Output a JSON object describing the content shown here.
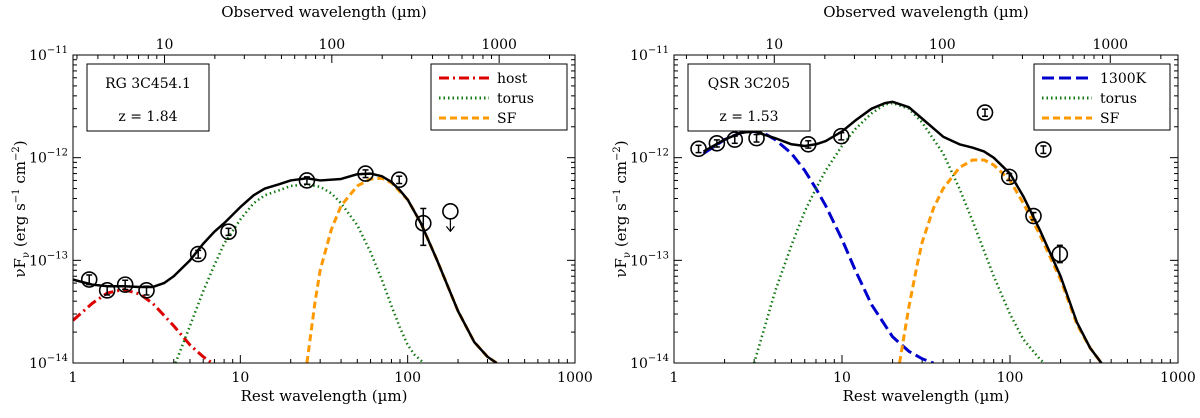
{
  "chart_data": [
    {
      "type": "line",
      "log_x": true,
      "log_y": true,
      "xlim": [
        1,
        1000
      ],
      "ylim": [
        1e-14,
        1e-11
      ],
      "xlabel": "Rest wavelength (µm)",
      "top_xlabel": "Observed wavelength (µm)",
      "ylabel_main": "νF",
      "ylabel_sub": "ν",
      "ylabel_units": " (erg s",
      "ylabel_exp1": "−1",
      "ylabel_cm": " cm",
      "ylabel_exp2": "−2",
      "ylabel_close": ")",
      "x_ticks": [
        {
          "value": 1,
          "label": "1"
        },
        {
          "value": 10,
          "label": "10"
        },
        {
          "value": 100,
          "label": "100"
        },
        {
          "value": 1000,
          "label": "1000"
        }
      ],
      "top_x_ticks": [
        {
          "value": 10,
          "label": "10"
        },
        {
          "value": 100,
          "label": "100"
        },
        {
          "value": 1000,
          "label": "1000"
        }
      ],
      "y_ticks": [
        {
          "value": 1e-14,
          "mant": "10",
          "exp": "−14"
        },
        {
          "value": 1e-13,
          "mant": "10",
          "exp": "−13"
        },
        {
          "value": 1e-12,
          "mant": "10",
          "exp": "−12"
        },
        {
          "value": 1e-11,
          "mant": "10",
          "exp": "−11"
        }
      ],
      "redshift": 1.84,
      "info": {
        "name": "RG 3C454.1",
        "z_label": "z = 1.84"
      },
      "legend": [
        {
          "label": "host",
          "color": "#dd0000",
          "dash": "10,4,2,4"
        },
        {
          "label": "torus",
          "color": "#117711",
          "dash": "1.5,3"
        },
        {
          "label": "SF",
          "color": "#ff9900",
          "dash": "7,4"
        }
      ],
      "series": [
        {
          "name": "host",
          "color": "#dd0000",
          "dash": "10,4,2,4",
          "width": 3,
          "x": [
            1,
            1.3,
            1.6,
            2,
            2.5,
            3,
            4,
            5,
            6,
            6.8
          ],
          "y": [
            2.6e-14,
            3.8e-14,
            4.8e-14,
            5.2e-14,
            4.7e-14,
            3.8e-14,
            2.3e-14,
            1.5e-14,
            1.15e-14,
            1e-14
          ]
        },
        {
          "name": "torus",
          "color": "#117711",
          "dash": "1.5,3",
          "width": 2.5,
          "x": [
            4.1,
            5,
            6,
            7,
            8,
            10,
            12,
            14,
            17,
            20,
            25,
            30,
            35,
            40,
            50,
            60,
            70,
            80,
            90,
            100,
            110,
            125
          ],
          "y": [
            1e-14,
            2.3e-14,
            5e-14,
            9e-14,
            1.45e-13,
            2.5e-13,
            3.6e-13,
            4.3e-13,
            4.8e-13,
            5.3e-13,
            5.5e-13,
            5.2e-13,
            4.5e-13,
            3.6e-13,
            2.2e-13,
            1.2e-13,
            6.5e-14,
            3.6e-14,
            2.2e-14,
            1.5e-14,
            1.2e-14,
            1e-14
          ]
        },
        {
          "name": "SF",
          "color": "#ff9900",
          "dash": "7,4",
          "width": 3,
          "x": [
            25,
            28,
            30,
            35,
            40,
            50,
            60,
            70,
            80,
            100,
            120,
            150,
            200,
            250,
            300,
            340
          ],
          "y": [
            1e-14,
            4e-14,
            8e-14,
            2e-13,
            3.4e-13,
            5.3e-13,
            6.2e-13,
            6.3e-13,
            5.7e-13,
            3.9e-13,
            2.3e-13,
            1e-13,
            3.2e-14,
            1.6e-14,
            1.15e-14,
            1e-14
          ]
        },
        {
          "name": "total",
          "color": "#000000",
          "dash": "",
          "width": 2.5,
          "x": [
            1,
            1.3,
            1.6,
            2,
            2.5,
            3,
            3.5,
            4,
            5,
            6,
            7,
            8,
            10,
            12,
            14,
            17,
            20,
            25,
            30,
            40,
            50,
            60,
            70,
            80,
            90,
            100,
            120,
            150,
            200,
            250,
            300,
            340
          ],
          "y": [
            6.5e-14,
            5.8e-14,
            5.6e-14,
            5.6e-14,
            5.5e-14,
            5.5e-14,
            6e-14,
            7e-14,
            1e-13,
            1.45e-13,
            1.9e-13,
            2.3e-13,
            3.3e-13,
            4.3e-13,
            5e-13,
            5.5e-13,
            6e-13,
            6.3e-13,
            6e-13,
            6.2e-13,
            6.9e-13,
            7e-13,
            6.6e-13,
            5.8e-13,
            4.8e-13,
            3.9e-13,
            2.3e-13,
            1e-13,
            3.2e-14,
            1.6e-14,
            1.15e-14,
            1e-14
          ]
        }
      ],
      "points": [
        {
          "x": 1.25,
          "y": 6.5e-14,
          "err": [
            5.8e-14,
            7.2e-14
          ]
        },
        {
          "x": 1.6,
          "y": 5.1e-14,
          "err": [
            4.6e-14,
            5.6e-14
          ]
        },
        {
          "x": 2.05,
          "y": 5.8e-14,
          "err": [
            5.2e-14,
            6.4e-14
          ]
        },
        {
          "x": 2.75,
          "y": 5.1e-14,
          "err": [
            4.6e-14,
            5.6e-14
          ]
        },
        {
          "x": 5.6,
          "y": 1.15e-13,
          "err": [
            1.05e-13,
            1.25e-13
          ]
        },
        {
          "x": 8.5,
          "y": 1.9e-13,
          "err": [
            1.75e-13,
            2.05e-13
          ]
        },
        {
          "x": 25,
          "y": 6e-13,
          "err": [
            5.5e-13,
            6.5e-13
          ]
        },
        {
          "x": 56,
          "y": 7e-13,
          "err": [
            6.4e-13,
            7.6e-13
          ]
        },
        {
          "x": 89,
          "y": 6.1e-13,
          "err": [
            5.6e-13,
            6.6e-13
          ]
        },
        {
          "x": 124,
          "y": 2.3e-13,
          "err": [
            1.4e-13,
            3.2e-13
          ]
        }
      ],
      "upper_limits": [
        {
          "x": 180,
          "y": 3e-13
        }
      ]
    },
    {
      "type": "line",
      "log_x": true,
      "log_y": true,
      "xlim": [
        1,
        1000
      ],
      "ylim": [
        1e-14,
        1e-11
      ],
      "xlabel": "Rest wavelength (µm)",
      "top_xlabel": "Observed wavelength (µm)",
      "ylabel_main": "νF",
      "ylabel_sub": "ν",
      "ylabel_units": " (erg s",
      "ylabel_exp1": "−1",
      "ylabel_cm": " cm",
      "ylabel_exp2": "−2",
      "ylabel_close": ")",
      "x_ticks": [
        {
          "value": 1,
          "label": "1"
        },
        {
          "value": 10,
          "label": "10"
        },
        {
          "value": 100,
          "label": "100"
        },
        {
          "value": 1000,
          "label": "1000"
        }
      ],
      "top_x_ticks": [
        {
          "value": 10,
          "label": "10"
        },
        {
          "value": 100,
          "label": "100"
        },
        {
          "value": 1000,
          "label": "1000"
        }
      ],
      "y_ticks": [
        {
          "value": 1e-14,
          "mant": "10",
          "exp": "−14"
        },
        {
          "value": 1e-13,
          "mant": "10",
          "exp": "−13"
        },
        {
          "value": 1e-12,
          "mant": "10",
          "exp": "−12"
        },
        {
          "value": 1e-11,
          "mant": "10",
          "exp": "−11"
        }
      ],
      "redshift": 1.53,
      "info": {
        "name": "QSR 3C205",
        "z_label": "z = 1.53"
      },
      "legend": [
        {
          "label": "1300K",
          "color": "#0000cc",
          "dash": "12,5"
        },
        {
          "label": "torus",
          "color": "#117711",
          "dash": "1.5,3"
        },
        {
          "label": "SF",
          "color": "#ff9900",
          "dash": "7,4"
        }
      ],
      "series": [
        {
          "name": "1300K",
          "color": "#0000cc",
          "dash": "12,5",
          "width": 3,
          "x": [
            1.5,
            2,
            2.5,
            3,
            3.5,
            4,
            5,
            6,
            7,
            8,
            10,
            12,
            15,
            20,
            25,
            30,
            35
          ],
          "y": [
            1.1e-12,
            1.5e-12,
            1.75e-12,
            1.8e-12,
            1.7e-12,
            1.5e-12,
            1.1e-12,
            7.5e-13,
            5e-13,
            3.4e-13,
            1.6e-13,
            8e-14,
            3.7e-14,
            1.8e-14,
            1.3e-14,
            1.1e-14,
            1e-14
          ]
        },
        {
          "name": "torus",
          "color": "#117711",
          "dash": "1.5,3",
          "width": 2.5,
          "x": [
            3,
            4,
            5,
            6,
            7,
            8,
            10,
            12,
            15,
            18,
            20,
            25,
            30,
            40,
            50,
            60,
            80,
            100,
            120,
            150,
            160
          ],
          "y": [
            1e-14,
            5e-14,
            1.4e-13,
            3e-13,
            5e-13,
            7.5e-13,
            1.3e-12,
            1.9e-12,
            2.7e-12,
            3.3e-12,
            3.4e-12,
            3e-12,
            2.2e-12,
            1.1e-12,
            5e-13,
            2.4e-13,
            7e-14,
            3e-14,
            1.7e-14,
            1.1e-14,
            1e-14
          ]
        },
        {
          "name": "SF",
          "color": "#ff9900",
          "dash": "7,4",
          "width": 3,
          "x": [
            22,
            25,
            28,
            30,
            35,
            40,
            50,
            60,
            70,
            80,
            100,
            120,
            150,
            200,
            250,
            300,
            350
          ],
          "y": [
            1e-14,
            3.5e-14,
            9e-14,
            1.5e-13,
            3.2e-13,
            5e-13,
            8e-13,
            9.5e-13,
            9.5e-13,
            8.5e-13,
            6e-13,
            3.6e-13,
            1.8e-13,
            6.5e-14,
            2.4e-14,
            1.4e-14,
            1e-14
          ]
        },
        {
          "name": "total",
          "color": "#000000",
          "dash": "",
          "width": 2.5,
          "x": [
            1.5,
            2,
            2.5,
            3,
            4,
            5,
            6,
            7,
            8,
            10,
            12,
            15,
            18,
            20,
            25,
            30,
            40,
            50,
            60,
            70,
            80,
            100,
            120,
            150,
            200,
            250,
            300,
            350
          ],
          "y": [
            1.15e-12,
            1.5e-12,
            1.75e-12,
            1.8e-12,
            1.55e-12,
            1.35e-12,
            1.3e-12,
            1.35e-12,
            1.45e-12,
            1.8e-12,
            2.3e-12,
            3e-12,
            3.4e-12,
            3.5e-12,
            3.1e-12,
            2.4e-12,
            1.6e-12,
            1.35e-12,
            1.25e-12,
            1.15e-12,
            1e-12,
            7e-13,
            4.2e-13,
            2e-13,
            7e-14,
            2.5e-14,
            1.4e-14,
            1e-14
          ]
        }
      ],
      "points": [
        {
          "x": 1.4,
          "y": 1.22e-12,
          "err": [
            1.12e-12,
            1.32e-12
          ]
        },
        {
          "x": 1.8,
          "y": 1.38e-12,
          "err": [
            1.27e-12,
            1.49e-12
          ]
        },
        {
          "x": 2.3,
          "y": 1.5e-12,
          "err": [
            1.38e-12,
            1.62e-12
          ]
        },
        {
          "x": 3.1,
          "y": 1.55e-12,
          "err": [
            1.42e-12,
            1.68e-12
          ]
        },
        {
          "x": 6.3,
          "y": 1.35e-12,
          "err": [
            1.24e-12,
            1.46e-12
          ]
        },
        {
          "x": 9.9,
          "y": 1.62e-12,
          "err": [
            1.49e-12,
            1.75e-12
          ]
        },
        {
          "x": 71,
          "y": 2.75e-12,
          "err": [
            2.53e-12,
            2.97e-12
          ]
        },
        {
          "x": 158,
          "y": 1.2e-12,
          "err": [
            1.1e-12,
            1.3e-12
          ]
        },
        {
          "x": 99,
          "y": 6.5e-13,
          "err": [
            6e-13,
            7e-13
          ]
        },
        {
          "x": 138,
          "y": 2.7e-13,
          "err": [
            2.48e-13,
            2.92e-13
          ]
        },
        {
          "x": 198,
          "y": 1.15e-13,
          "err": [
            9.5e-14,
            1.4e-13
          ]
        }
      ],
      "upper_limits": []
    }
  ]
}
